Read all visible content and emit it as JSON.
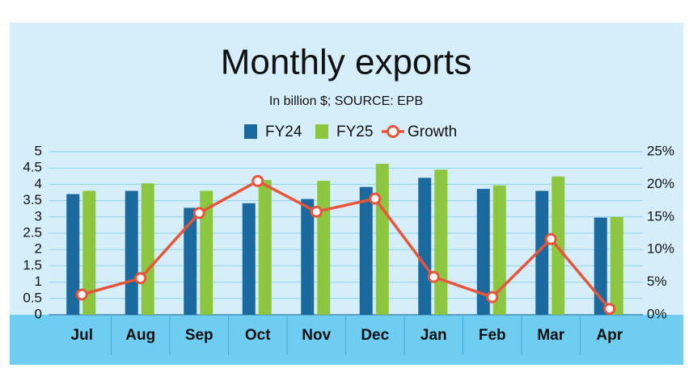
{
  "chart_data": {
    "type": "bar-line",
    "title": "Monthly exports",
    "subtitle": "In billion $; SOURCE: EPB",
    "categories": [
      "Jul",
      "Aug",
      "Sep",
      "Oct",
      "Nov",
      "Dec",
      "Jan",
      "Feb",
      "Mar",
      "Apr"
    ],
    "series": [
      {
        "name": "FY24",
        "type": "bar",
        "color": "#1a6aa0",
        "values": [
          3.7,
          3.8,
          3.28,
          3.42,
          3.55,
          3.92,
          4.2,
          3.86,
          3.8,
          2.98
        ]
      },
      {
        "name": "FY25",
        "type": "bar",
        "color": "#8cc63e",
        "values": [
          3.8,
          4.03,
          3.8,
          4.13,
          4.11,
          4.63,
          4.45,
          3.97,
          4.24,
          3.0
        ]
      },
      {
        "name": "Growth",
        "type": "line",
        "axis": "y2",
        "color": "#e8553a",
        "values": [
          3.1,
          5.6,
          15.6,
          20.5,
          15.8,
          17.8,
          5.8,
          2.7,
          11.6,
          0.9
        ]
      }
    ],
    "ylim": [
      0,
      5
    ],
    "yticks": [
      0,
      0.5,
      1,
      1.5,
      2,
      2.5,
      3,
      3.5,
      4,
      4.5,
      5
    ],
    "y2lim": [
      0,
      25
    ],
    "y2ticks": [
      {
        "value": 0,
        "label": "0%"
      },
      {
        "value": 5,
        "label": "5%"
      },
      {
        "value": 10,
        "label": "10%"
      },
      {
        "value": 15,
        "label": "15%"
      },
      {
        "value": 20,
        "label": "20%"
      },
      {
        "value": 25,
        "label": "25%"
      }
    ],
    "grid": true,
    "legend": "top"
  }
}
